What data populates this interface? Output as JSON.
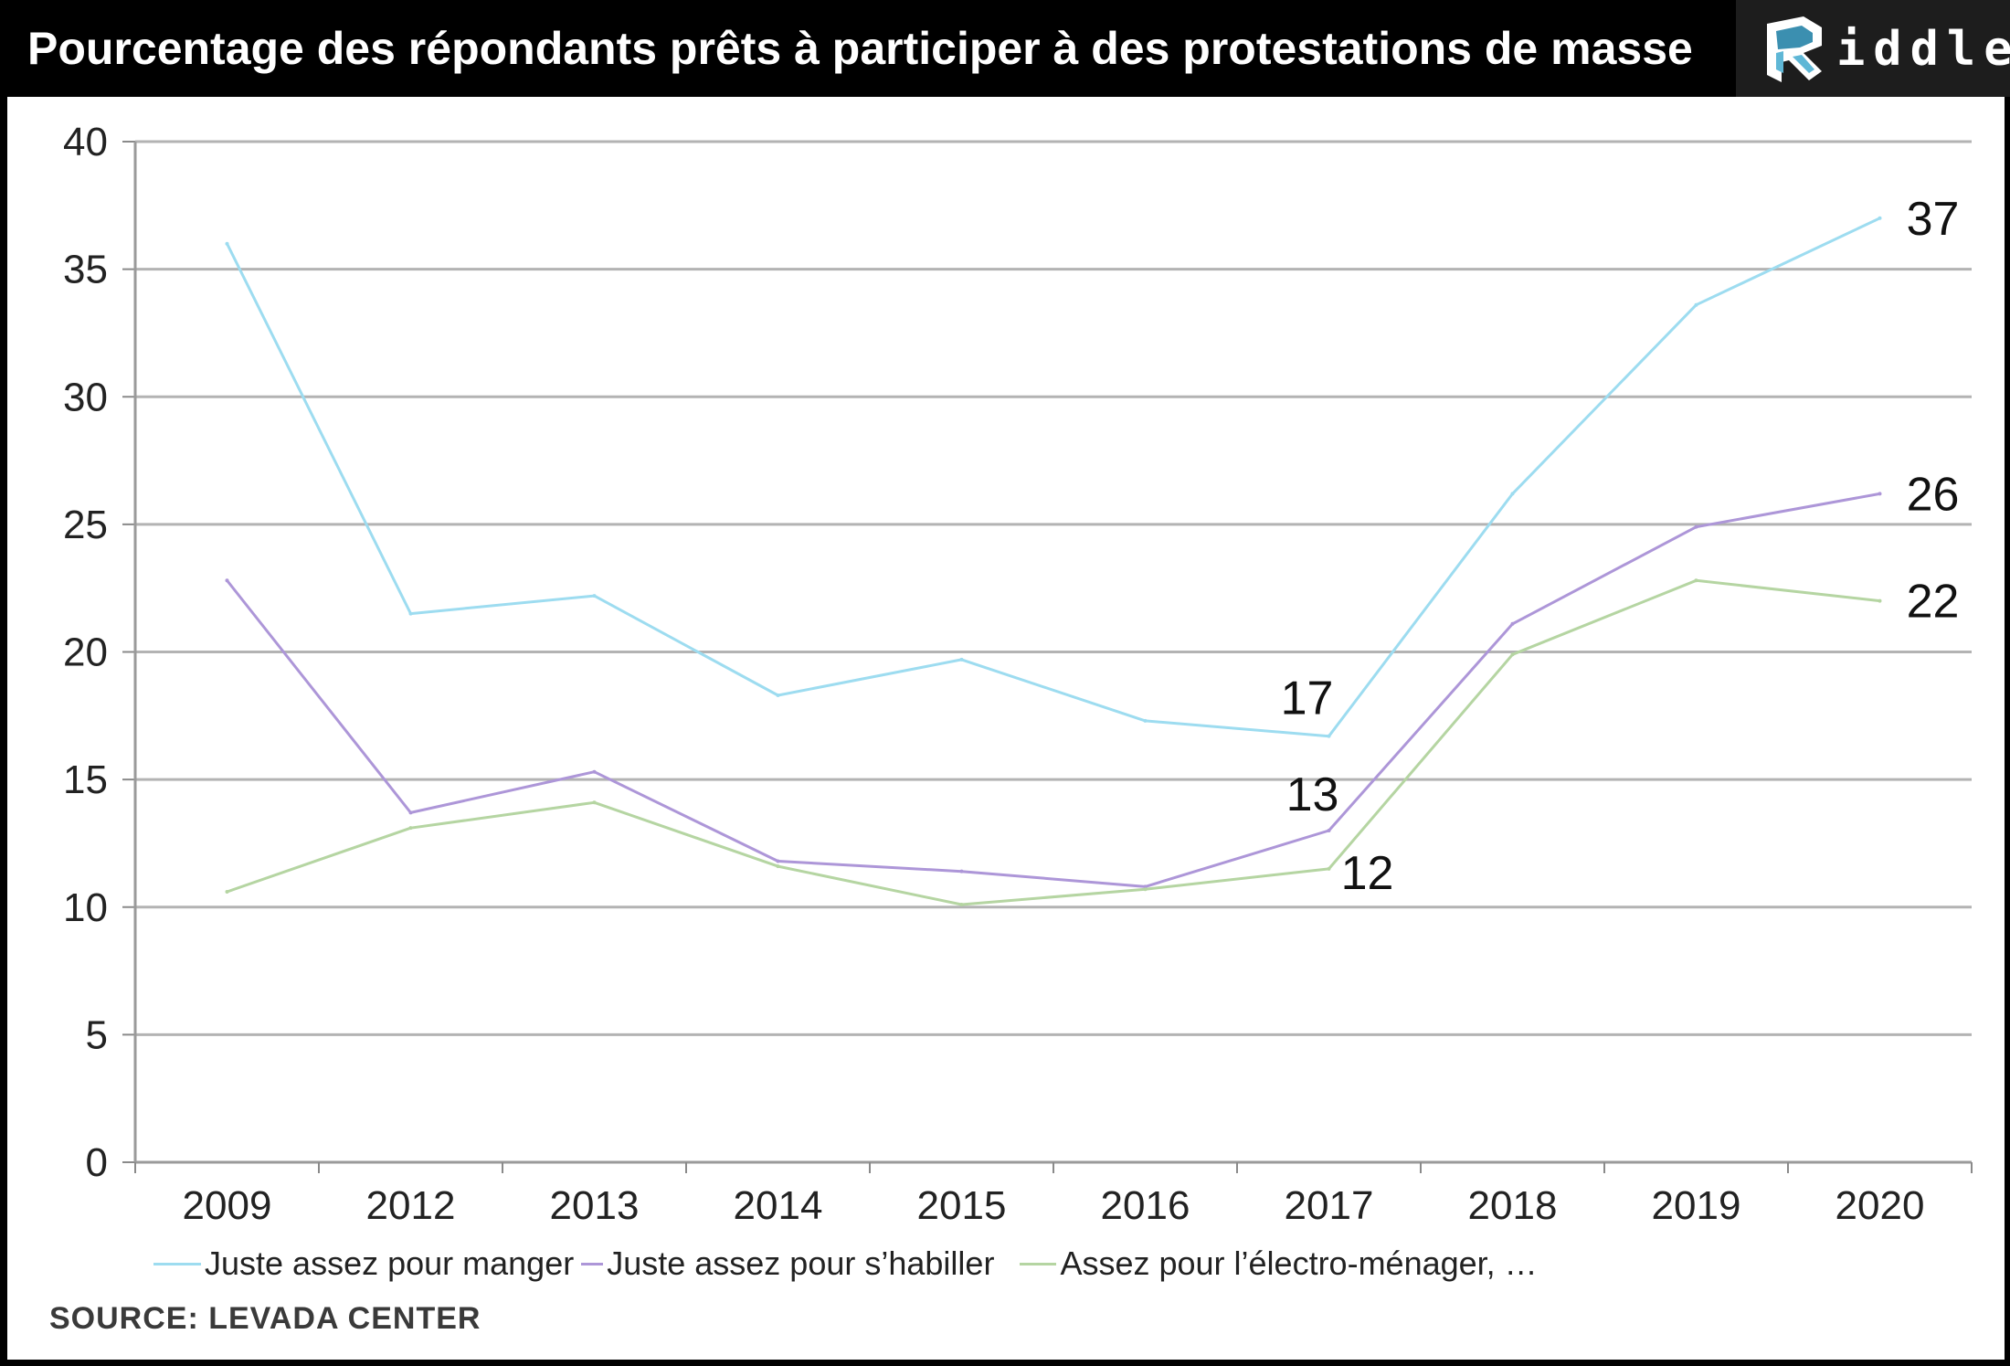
{
  "header": {
    "title": "Pourcentage des répondants prêts à participer à des protestations de masse",
    "brand": "iddle"
  },
  "chart_data": {
    "type": "line",
    "title": "Pourcentage des répondants prêts à participer à des protestations de masse",
    "xlabel": "",
    "ylabel": "",
    "categories": [
      "2009",
      "2012",
      "2013",
      "2014",
      "2015",
      "2016",
      "2017",
      "2018",
      "2019",
      "2020"
    ],
    "ylim": [
      0,
      40
    ],
    "yticks": [
      0,
      5,
      10,
      15,
      20,
      25,
      30,
      35,
      40
    ],
    "grid": true,
    "legend_position": "bottom",
    "series": [
      {
        "name": "Juste assez pour manger",
        "color": "#9ddcf0",
        "values": [
          36,
          21.5,
          22.2,
          18.3,
          19.7,
          17.3,
          16.7,
          26.2,
          33.6,
          37
        ]
      },
      {
        "name": "Juste assez pour s’habiller",
        "color": "#ad96d8",
        "values": [
          22.8,
          13.7,
          15.3,
          11.8,
          11.4,
          10.8,
          13,
          21.1,
          24.9,
          26.2
        ]
      },
      {
        "name": "Assez pour l’électro-ménager, …",
        "color": "#b5d5a2",
        "values": [
          10.6,
          13.1,
          14.1,
          11.6,
          10.1,
          10.7,
          11.5,
          19.9,
          22.8,
          22
        ]
      }
    ],
    "annotations": [
      {
        "text": "37",
        "series": 0,
        "index": 9
      },
      {
        "text": "26",
        "series": 1,
        "index": 9
      },
      {
        "text": "22",
        "series": 2,
        "index": 9
      },
      {
        "text": "17",
        "series": 0,
        "index": 6
      },
      {
        "text": "13",
        "series": 1,
        "index": 6
      },
      {
        "text": "12",
        "series": 2,
        "index": 6
      }
    ],
    "source": "SOURCE: LEVADA CENTER"
  }
}
